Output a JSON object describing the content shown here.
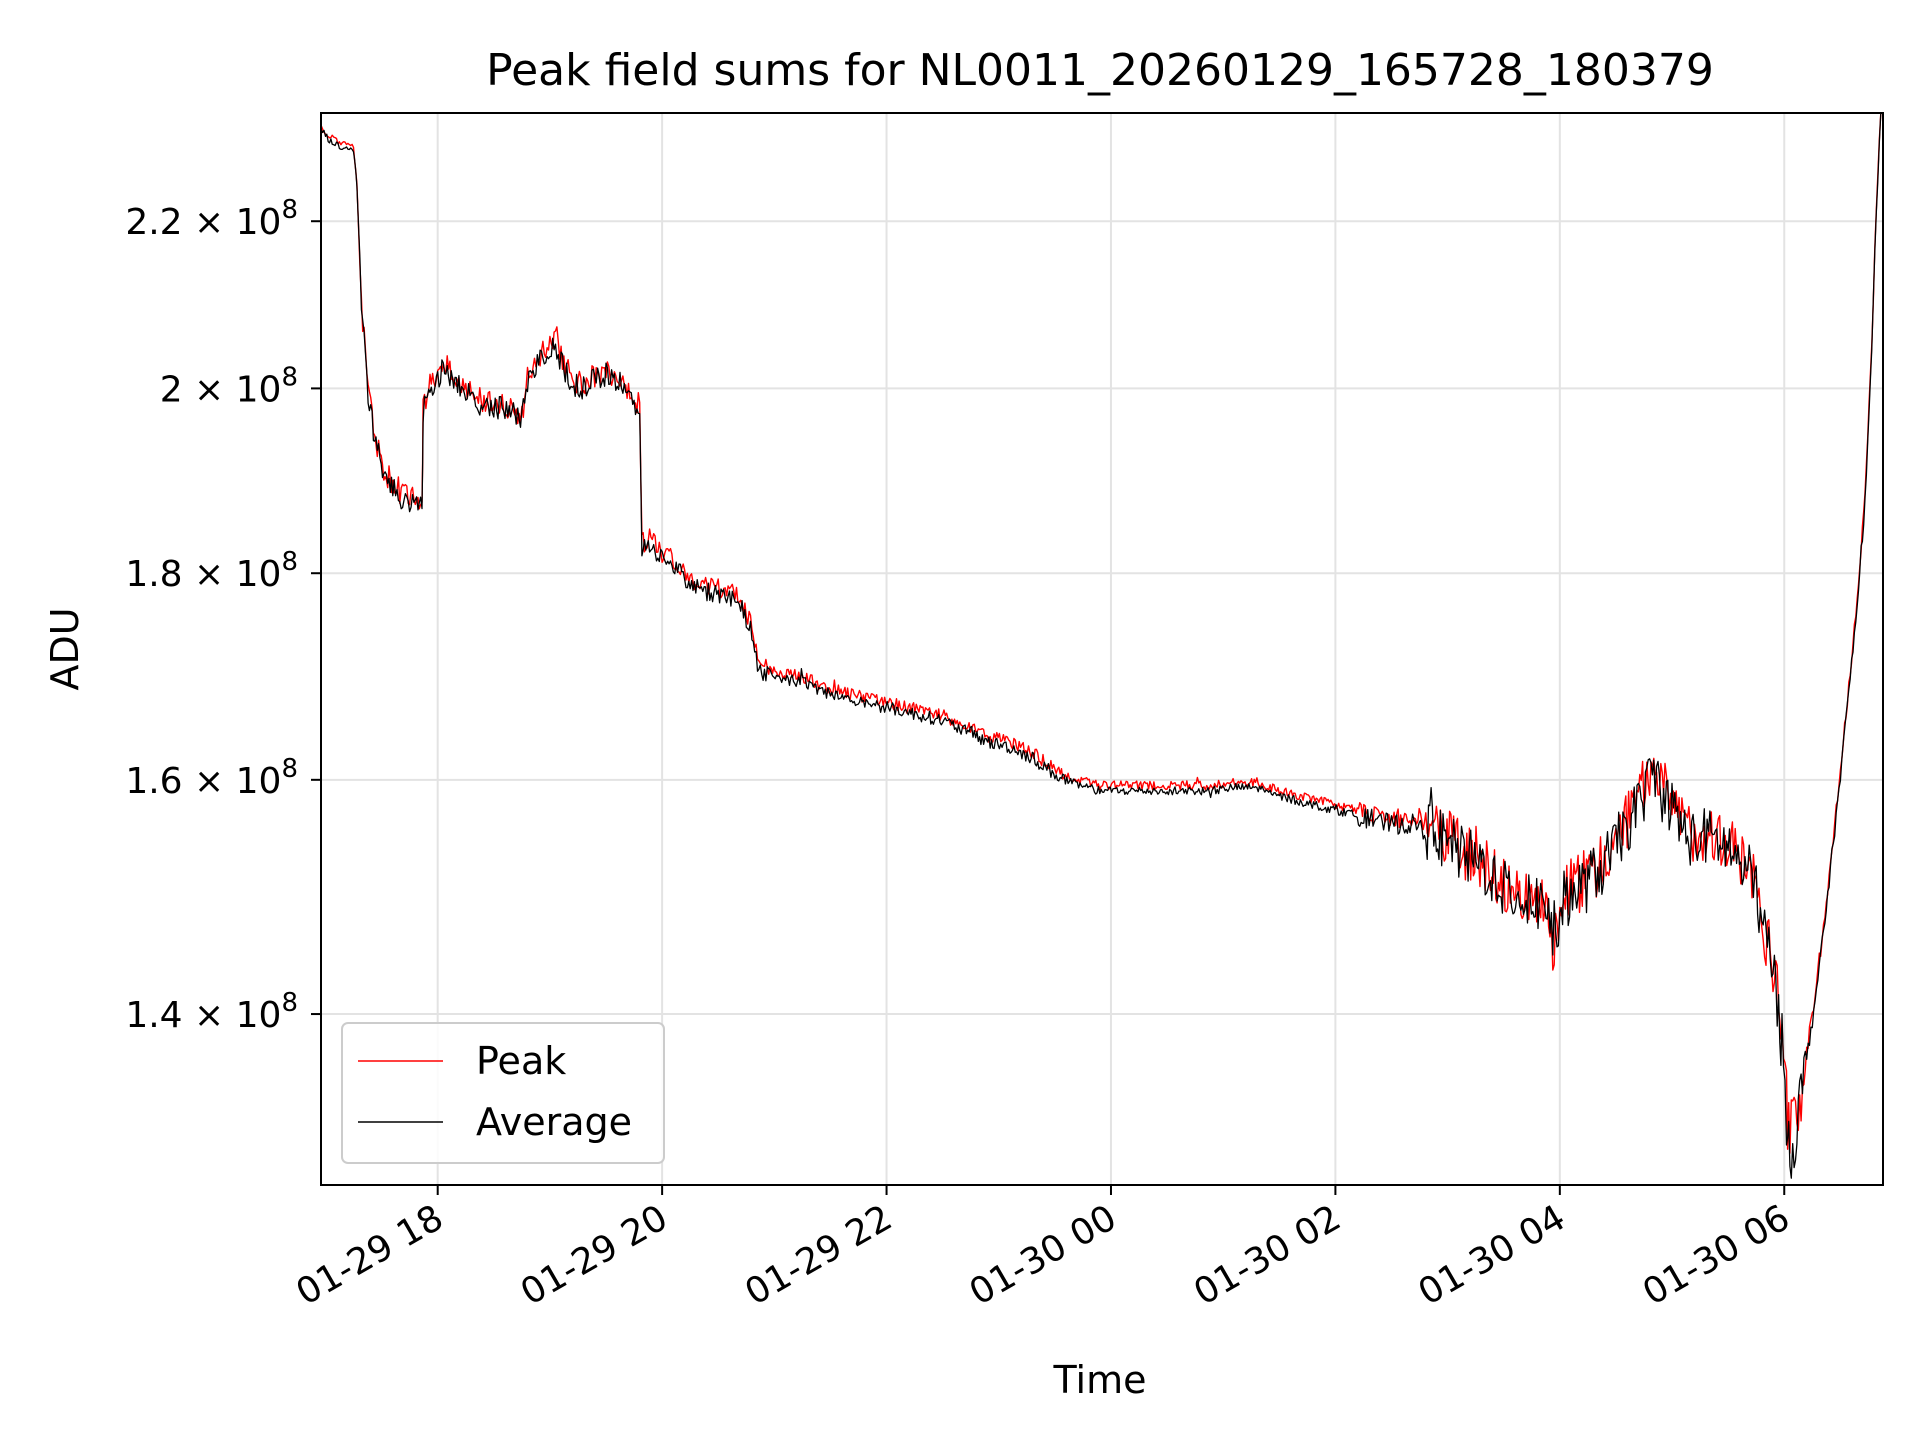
{
  "chart_data": {
    "type": "line",
    "title": "Peak field sums for NL0011_20260129_165728_180379",
    "xlabel": "Time",
    "ylabel": "ADU",
    "y_scale": "log",
    "x_unit": "hours since 2026-01-29 00:00",
    "xlim": [
      16.96,
      30.88
    ],
    "ylim": [
      127000000,
      234000000
    ],
    "x_ticks": [
      {
        "value": 18,
        "label": "01-29 18"
      },
      {
        "value": 20,
        "label": "01-29 20"
      },
      {
        "value": 22,
        "label": "01-29 22"
      },
      {
        "value": 24,
        "label": "01-30 00"
      },
      {
        "value": 26,
        "label": "01-30 02"
      },
      {
        "value": 28,
        "label": "01-30 04"
      },
      {
        "value": 30,
        "label": "01-30 06"
      }
    ],
    "y_ticks": [
      {
        "value": 140000000,
        "mantissa": "1.4",
        "base": "10",
        "exp": "8"
      },
      {
        "value": 160000000,
        "mantissa": "1.6",
        "base": "10",
        "exp": "8"
      },
      {
        "value": 180000000,
        "mantissa": "1.8",
        "base": "10",
        "exp": "8"
      },
      {
        "value": 200000000,
        "mantissa": "2",
        "base": "10",
        "exp": "8"
      },
      {
        "value": 220000000,
        "mantissa": "2.2",
        "base": "10",
        "exp": "8"
      }
    ],
    "grid": true,
    "legend_position": "lower-left",
    "series": [
      {
        "name": "Peak",
        "color": "#ff0000",
        "points": [
          [
            16.96,
            232.5
          ],
          [
            17.0,
            231.5
          ],
          [
            17.06,
            230.5
          ],
          [
            17.15,
            230.0
          ],
          [
            17.25,
            229.5
          ],
          [
            17.28,
            225.0
          ],
          [
            17.32,
            210.0
          ],
          [
            17.38,
            200.0
          ],
          [
            17.45,
            194.0
          ],
          [
            17.52,
            191.0
          ],
          [
            17.6,
            189.5
          ],
          [
            17.7,
            188.0
          ],
          [
            17.8,
            187.5
          ],
          [
            17.86,
            187.0
          ],
          [
            17.87,
            198.0
          ],
          [
            17.92,
            200.0
          ],
          [
            18.0,
            201.5
          ],
          [
            18.05,
            203.5
          ],
          [
            18.12,
            201.5
          ],
          [
            18.2,
            200.5
          ],
          [
            18.3,
            199.5
          ],
          [
            18.4,
            198.5
          ],
          [
            18.5,
            198.5
          ],
          [
            18.6,
            198.0
          ],
          [
            18.7,
            197.5
          ],
          [
            18.75,
            197.0
          ],
          [
            18.8,
            201.0
          ],
          [
            18.9,
            203.5
          ],
          [
            19.0,
            205.0
          ],
          [
            19.05,
            206.5
          ],
          [
            19.1,
            203.5
          ],
          [
            19.2,
            201.0
          ],
          [
            19.3,
            200.5
          ],
          [
            19.4,
            201.5
          ],
          [
            19.5,
            202.0
          ],
          [
            19.6,
            201.5
          ],
          [
            19.7,
            199.5
          ],
          [
            19.8,
            198.0
          ],
          [
            19.82,
            183.0
          ],
          [
            19.9,
            184.0
          ],
          [
            20.0,
            182.0
          ],
          [
            20.1,
            181.5
          ],
          [
            20.2,
            180.0
          ],
          [
            20.3,
            179.0
          ],
          [
            20.4,
            178.5
          ],
          [
            20.5,
            178.5
          ],
          [
            20.6,
            178.0
          ],
          [
            20.7,
            177.5
          ],
          [
            20.8,
            174.5
          ],
          [
            20.85,
            171.0
          ],
          [
            20.95,
            170.5
          ],
          [
            21.1,
            170.0
          ],
          [
            21.3,
            169.5
          ],
          [
            21.5,
            168.5
          ],
          [
            21.7,
            168.0
          ],
          [
            21.9,
            167.5
          ],
          [
            22.1,
            167.0
          ],
          [
            22.3,
            166.5
          ],
          [
            22.5,
            166.0
          ],
          [
            22.7,
            165.0
          ],
          [
            22.9,
            164.0
          ],
          [
            23.1,
            163.5
          ],
          [
            23.3,
            162.5
          ],
          [
            23.5,
            161.0
          ],
          [
            23.7,
            160.0
          ],
          [
            23.9,
            159.5
          ],
          [
            24.1,
            159.5
          ],
          [
            24.3,
            159.5
          ],
          [
            24.5,
            159.5
          ],
          [
            24.7,
            159.5
          ],
          [
            24.9,
            159.5
          ],
          [
            25.1,
            159.8
          ],
          [
            25.3,
            159.8
          ],
          [
            25.5,
            159.0
          ],
          [
            25.7,
            158.5
          ],
          [
            25.9,
            158.0
          ],
          [
            26.1,
            157.5
          ],
          [
            26.3,
            157.0
          ],
          [
            26.5,
            156.5
          ],
          [
            26.7,
            156.5
          ],
          [
            26.9,
            155.5
          ],
          [
            27.1,
            154.0
          ],
          [
            27.3,
            153.0
          ],
          [
            27.5,
            151.0
          ],
          [
            27.7,
            150.0
          ],
          [
            27.9,
            149.5
          ],
          [
            27.95,
            145.0
          ],
          [
            28.0,
            149.5
          ],
          [
            28.1,
            150.5
          ],
          [
            28.2,
            151.0
          ],
          [
            28.3,
            152.0
          ],
          [
            28.4,
            153.0
          ],
          [
            28.5,
            154.5
          ],
          [
            28.6,
            156.5
          ],
          [
            28.7,
            158.0
          ],
          [
            28.8,
            160.5
          ],
          [
            28.85,
            161.5
          ],
          [
            28.9,
            159.5
          ],
          [
            29.0,
            158.0
          ],
          [
            29.1,
            156.0
          ],
          [
            29.2,
            155.0
          ],
          [
            29.3,
            155.5
          ],
          [
            29.4,
            155.0
          ],
          [
            29.5,
            154.5
          ],
          [
            29.6,
            153.0
          ],
          [
            29.7,
            152.0
          ],
          [
            29.75,
            151.0
          ],
          [
            29.8,
            148.0
          ],
          [
            29.9,
            144.0
          ],
          [
            29.95,
            141.0
          ],
          [
            29.98,
            138.0
          ],
          [
            30.02,
            133.0
          ],
          [
            30.05,
            130.5
          ],
          [
            30.1,
            131.5
          ],
          [
            30.15,
            134.0
          ],
          [
            30.25,
            140.0
          ],
          [
            30.35,
            147.0
          ],
          [
            30.45,
            156.0
          ],
          [
            30.55,
            166.0
          ],
          [
            30.65,
            177.0
          ],
          [
            30.72,
            188.0
          ],
          [
            30.78,
            205.0
          ],
          [
            30.82,
            222.0
          ],
          [
            30.86,
            234.0
          ]
        ]
      },
      {
        "name": "Average",
        "color": "#000000",
        "points": [
          [
            16.96,
            232.0
          ],
          [
            17.0,
            231.0
          ],
          [
            17.06,
            230.0
          ],
          [
            17.15,
            229.5
          ],
          [
            17.25,
            229.0
          ],
          [
            17.28,
            224.5
          ],
          [
            17.32,
            209.5
          ],
          [
            17.38,
            199.5
          ],
          [
            17.45,
            193.5
          ],
          [
            17.52,
            190.5
          ],
          [
            17.6,
            189.0
          ],
          [
            17.7,
            187.5
          ],
          [
            17.8,
            187.0
          ],
          [
            17.86,
            186.5
          ],
          [
            17.87,
            197.5
          ],
          [
            17.92,
            199.5
          ],
          [
            18.0,
            201.0
          ],
          [
            18.05,
            203.0
          ],
          [
            18.12,
            201.0
          ],
          [
            18.2,
            200.0
          ],
          [
            18.3,
            199.0
          ],
          [
            18.4,
            198.0
          ],
          [
            18.5,
            198.0
          ],
          [
            18.6,
            197.5
          ],
          [
            18.7,
            197.0
          ],
          [
            18.75,
            196.5
          ],
          [
            18.8,
            200.5
          ],
          [
            18.9,
            203.0
          ],
          [
            19.0,
            204.0
          ],
          [
            19.05,
            205.0
          ],
          [
            19.1,
            203.0
          ],
          [
            19.2,
            200.5
          ],
          [
            19.3,
            200.0
          ],
          [
            19.4,
            201.0
          ],
          [
            19.5,
            201.5
          ],
          [
            19.6,
            201.0
          ],
          [
            19.7,
            199.0
          ],
          [
            19.8,
            197.5
          ],
          [
            19.82,
            182.5
          ],
          [
            19.9,
            183.0
          ],
          [
            20.0,
            181.5
          ],
          [
            20.1,
            181.0
          ],
          [
            20.2,
            179.5
          ],
          [
            20.3,
            178.5
          ],
          [
            20.4,
            178.0
          ],
          [
            20.5,
            178.0
          ],
          [
            20.6,
            177.5
          ],
          [
            20.7,
            177.0
          ],
          [
            20.8,
            174.0
          ],
          [
            20.85,
            170.5
          ],
          [
            20.95,
            170.0
          ],
          [
            21.1,
            169.5
          ],
          [
            21.3,
            169.0
          ],
          [
            21.5,
            168.0
          ],
          [
            21.7,
            167.5
          ],
          [
            21.9,
            167.0
          ],
          [
            22.1,
            166.5
          ],
          [
            22.3,
            166.0
          ],
          [
            22.5,
            165.5
          ],
          [
            22.7,
            164.5
          ],
          [
            22.9,
            163.5
          ],
          [
            23.1,
            163.0
          ],
          [
            23.3,
            162.0
          ],
          [
            23.5,
            160.5
          ],
          [
            23.7,
            159.5
          ],
          [
            23.9,
            159.0
          ],
          [
            24.1,
            159.0
          ],
          [
            24.3,
            159.0
          ],
          [
            24.5,
            159.0
          ],
          [
            24.7,
            159.0
          ],
          [
            24.9,
            159.0
          ],
          [
            25.1,
            159.3
          ],
          [
            25.3,
            159.3
          ],
          [
            25.5,
            158.5
          ],
          [
            25.7,
            158.0
          ],
          [
            25.9,
            157.5
          ],
          [
            26.1,
            157.0
          ],
          [
            26.3,
            156.5
          ],
          [
            26.5,
            156.0
          ],
          [
            26.7,
            156.0
          ],
          [
            26.9,
            155.0
          ],
          [
            27.1,
            153.5
          ],
          [
            27.3,
            152.5
          ],
          [
            27.5,
            150.5
          ],
          [
            27.7,
            149.5
          ],
          [
            27.9,
            149.0
          ],
          [
            27.95,
            144.5
          ],
          [
            28.0,
            149.0
          ],
          [
            28.1,
            150.0
          ],
          [
            28.2,
            150.5
          ],
          [
            28.3,
            151.5
          ],
          [
            28.4,
            152.5
          ],
          [
            28.5,
            154.0
          ],
          [
            28.6,
            156.0
          ],
          [
            28.7,
            157.5
          ],
          [
            28.8,
            160.0
          ],
          [
            28.85,
            161.0
          ],
          [
            28.9,
            159.0
          ],
          [
            29.0,
            157.5
          ],
          [
            29.1,
            155.5
          ],
          [
            29.2,
            154.5
          ],
          [
            29.3,
            155.0
          ],
          [
            29.4,
            154.5
          ],
          [
            29.5,
            154.0
          ],
          [
            29.6,
            152.5
          ],
          [
            29.7,
            151.5
          ],
          [
            29.75,
            150.5
          ],
          [
            29.8,
            147.5
          ],
          [
            29.9,
            143.5
          ],
          [
            29.95,
            140.5
          ],
          [
            29.98,
            137.5
          ],
          [
            30.02,
            132.5
          ],
          [
            30.05,
            129.5
          ],
          [
            30.1,
            131.0
          ],
          [
            30.15,
            133.5
          ],
          [
            30.25,
            139.5
          ],
          [
            30.35,
            146.5
          ],
          [
            30.45,
            155.5
          ],
          [
            30.55,
            165.5
          ],
          [
            30.65,
            176.5
          ],
          [
            30.72,
            187.5
          ],
          [
            30.78,
            204.5
          ],
          [
            30.82,
            221.5
          ],
          [
            30.86,
            234.0
          ]
        ]
      }
    ],
    "y_point_unit_multiplier": 1000000
  }
}
